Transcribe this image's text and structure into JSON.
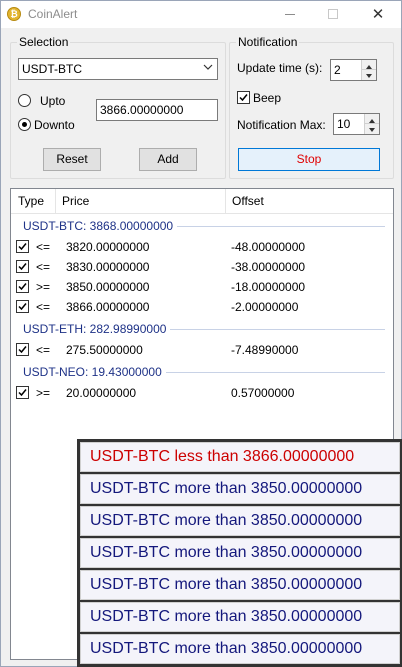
{
  "window": {
    "title": "CoinAlert"
  },
  "selection": {
    "group_title": "Selection",
    "pair_selected": "USDT-BTC",
    "upto_label": "Upto",
    "downto_label": "Downto",
    "price_value": "3866.00000000",
    "reset_label": "Reset",
    "add_label": "Add"
  },
  "notification": {
    "group_title": "Notification",
    "update_time_label": "Update time (s):",
    "update_time_value": "2",
    "beep_label": "Beep",
    "max_label": "Notification Max:",
    "max_value": "10",
    "stop_label": "Stop"
  },
  "list": {
    "columns": [
      "Type",
      "Price",
      "Offset"
    ],
    "groups": [
      {
        "header": "USDT-BTC: 3868.00000000",
        "rows": [
          {
            "type": "<=",
            "price": "3820.00000000",
            "offset": "-48.00000000"
          },
          {
            "type": "<=",
            "price": "3830.00000000",
            "offset": "-38.00000000"
          },
          {
            "type": ">=",
            "price": "3850.00000000",
            "offset": "-18.00000000"
          },
          {
            "type": "<=",
            "price": "3866.00000000",
            "offset": "-2.00000000"
          }
        ]
      },
      {
        "header": "USDT-ETH: 282.98990000",
        "rows": [
          {
            "type": "<=",
            "price": "275.50000000",
            "offset": "-7.48990000"
          }
        ]
      },
      {
        "header": "USDT-NEO: 19.43000000",
        "rows": [
          {
            "type": ">=",
            "price": "20.00000000",
            "offset": "0.57000000"
          }
        ]
      }
    ]
  },
  "notifications": [
    {
      "text": "USDT-BTC less than 3866.00000000",
      "color": "#cc0000"
    },
    {
      "text": "USDT-BTC more than 3850.00000000",
      "color": "#14187c"
    },
    {
      "text": "USDT-BTC more than 3850.00000000",
      "color": "#14187c"
    },
    {
      "text": "USDT-BTC more than 3850.00000000",
      "color": "#14187c"
    },
    {
      "text": "USDT-BTC more than 3850.00000000",
      "color": "#14187c"
    },
    {
      "text": "USDT-BTC more than 3850.00000000",
      "color": "#14187c"
    },
    {
      "text": "USDT-BTC more than 3850.00000000",
      "color": "#14187c"
    }
  ]
}
